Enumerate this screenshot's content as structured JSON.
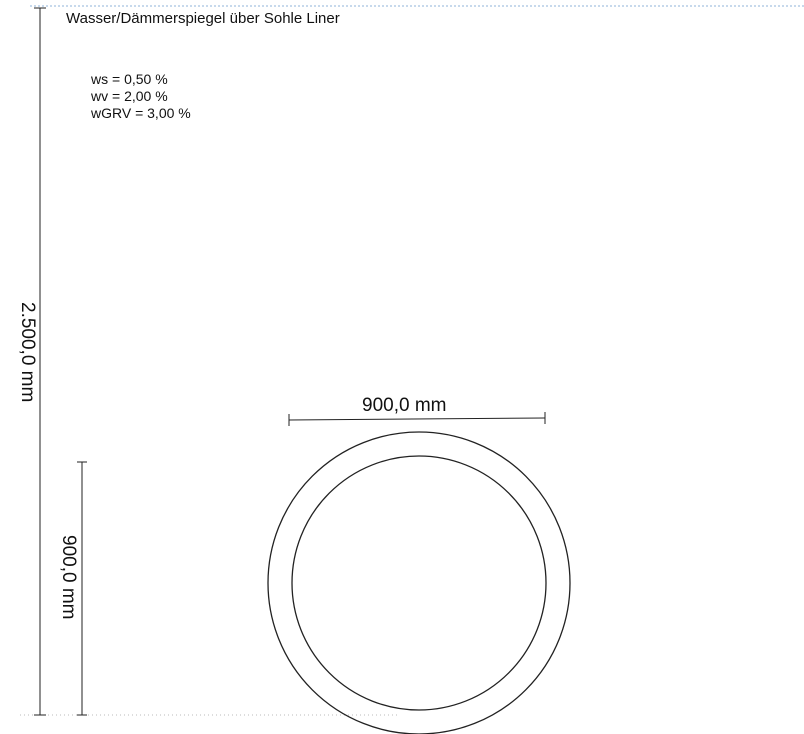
{
  "header": {
    "title": "Wasser/Dämmerspiegel über Sohle Liner"
  },
  "parameters": [
    "ws = 0,50 %",
    "wv = 2,00 %",
    "wGRV = 3,00 %"
  ],
  "dimensions": {
    "pipe_width_label": "900,0 mm",
    "total_height_label": "2.500,0 mm",
    "pipe_height_label": "900,0 mm"
  },
  "colors": {
    "line": "#222222",
    "top_dotted_line": "#8fb3d9"
  }
}
